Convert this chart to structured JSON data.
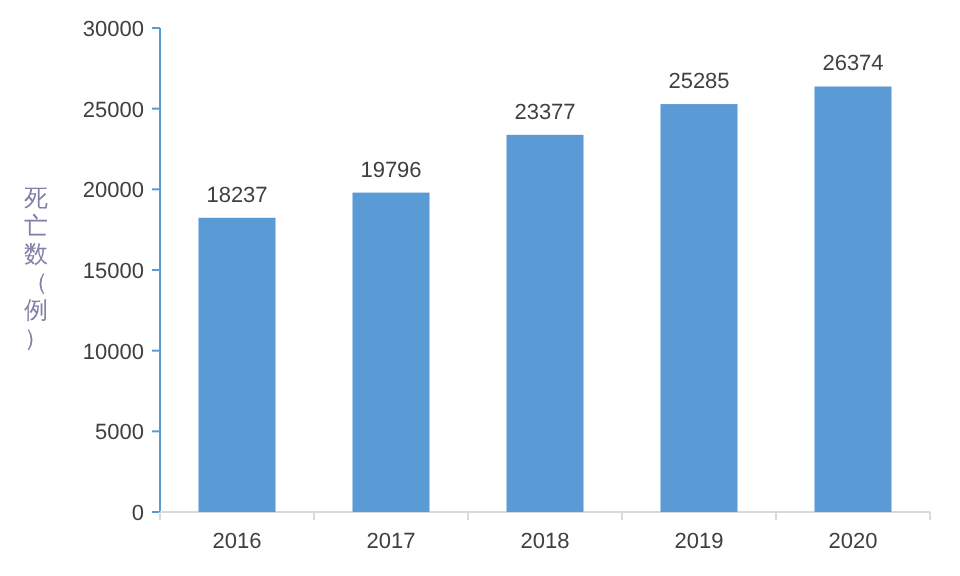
{
  "chart_data": {
    "type": "bar",
    "ylabel": "死亡数（例）",
    "categories": [
      "2016",
      "2017",
      "2018",
      "2019",
      "2020"
    ],
    "values": [
      18237,
      19796,
      23377,
      25285,
      26374
    ],
    "color": "#5b9bd5",
    "data_labels": true,
    "ylim": [
      0,
      30000
    ],
    "yticks": [
      0,
      5000,
      10000,
      15000,
      20000,
      25000,
      30000
    ],
    "grid": false
  }
}
